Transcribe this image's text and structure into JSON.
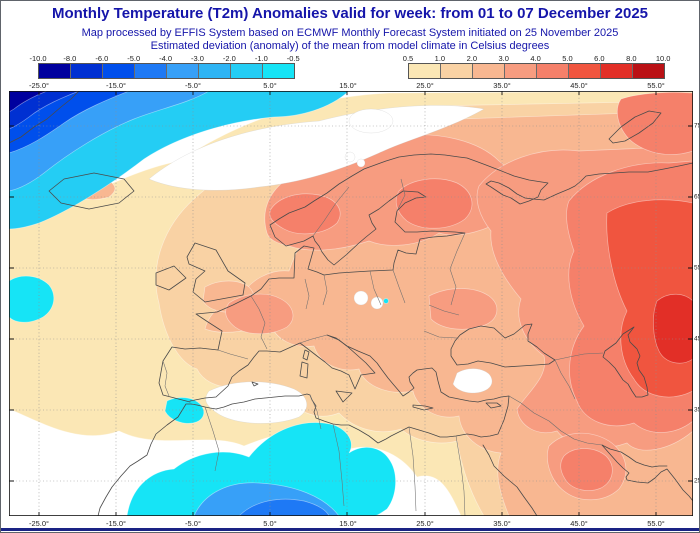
{
  "header": {
    "title": "Monthly Temperature (T2m) Anomalies valid for week: from 01 to 07 December 2025",
    "subtitle1": "Map processed by EFFIS System based on ECMWF Monthly Forecast System initiated on 25 November 2025",
    "subtitle2": "Estimated deviation (anomaly) of the mean from model climate in Celsius degrees",
    "text_color": "#1515AA"
  },
  "legend": {
    "negative": {
      "tick_labels": [
        "-10.0",
        "-8.0",
        "-6.0",
        "-5.0",
        "-4.0",
        "-3.0",
        "-2.0",
        "-1.0",
        "-0.5"
      ],
      "colors": [
        "#00009E",
        "#0030D2",
        "#004FEC",
        "#1E79F5",
        "#37A0F8",
        "#2EB4F4",
        "#24CDF4",
        "#16E4F6"
      ]
    },
    "positive": {
      "tick_labels": [
        "0.5",
        "1.0",
        "2.0",
        "3.0",
        "4.0",
        "5.0",
        "6.0",
        "8.0",
        "10.0"
      ],
      "colors": [
        "#FBE7B5",
        "#F9D2A4",
        "#F8B791",
        "#F79C80",
        "#F5806A",
        "#F0553F",
        "#E22F27",
        "#BA1115"
      ]
    }
  },
  "map": {
    "top_axis_labels": [
      "-25.0°",
      "-15.0°",
      "-5.0°",
      "5.0°",
      "15.0°",
      "25.0°",
      "35.0°",
      "45.0°",
      "55.0°"
    ],
    "bottom_axis_labels": [
      "-25.0°",
      "-15.0°",
      "-5.0°",
      "5.0°",
      "15.0°",
      "25.0°",
      "35.0°",
      "45.0°",
      "55.0°"
    ],
    "right_axis_labels": [
      "75",
      "65",
      "55",
      "45",
      "35",
      "25"
    ],
    "footer_rule_color": "#1A2384"
  }
}
